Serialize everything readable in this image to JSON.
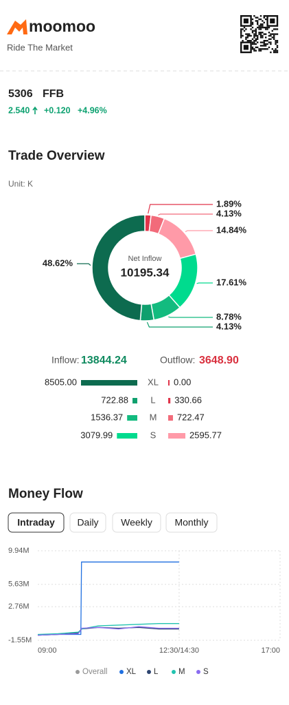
{
  "header": {
    "logo": "moomoo",
    "tagline": "Ride The Market"
  },
  "stock": {
    "code": "5306",
    "name": "FFB",
    "price": "2.540",
    "change": "+0.120",
    "change_pct": "+4.96%"
  },
  "trade_overview": {
    "title": "Trade Overview",
    "unit": "Unit: K"
  },
  "money_flow": {
    "title": "Money Flow",
    "tabs": [
      "Intraday",
      "Daily",
      "Weekly",
      "Monthly"
    ],
    "selected_tab": 0
  },
  "chart_data": [
    {
      "type": "pie",
      "donut": true,
      "center_label": "Net Inflow",
      "center_value": "10195.34",
      "values": [
        1.89,
        4.13,
        14.84,
        17.61,
        8.78,
        4.13,
        48.62
      ],
      "value_labels": [
        "1.89%",
        "4.13%",
        "14.84%",
        "17.61%",
        "8.78%",
        "4.13%",
        "48.62%"
      ],
      "colors": [
        "#e0344a",
        "#f26b7a",
        "#ff9aa8",
        "#00db8e",
        "#13bb7f",
        "#0fa06e",
        "#0d6b4f"
      ]
    },
    {
      "type": "bar",
      "categories": [
        "XL",
        "L",
        "M",
        "S"
      ],
      "series": [
        {
          "name": "Inflow:",
          "total": "13844.24",
          "color": "#0f8a5f",
          "colors": [
            "#0d6b4f",
            "#0fa06e",
            "#13bb7f",
            "#00db8e"
          ],
          "values": [
            8505.0,
            722.88,
            1536.37,
            3079.99
          ],
          "value_labels": [
            "8505.00",
            "722.88",
            "1536.37",
            "3079.99"
          ]
        },
        {
          "name": "Outflow:",
          "total": "3648.90",
          "color": "#d9303e",
          "colors": [
            "#e0344a",
            "#e0344a",
            "#f26b7a",
            "#ff9aa8"
          ],
          "values": [
            0,
            330.66,
            722.47,
            2595.77
          ],
          "value_labels": [
            "0.00",
            "330.66",
            "722.47",
            "2595.77"
          ]
        }
      ]
    },
    {
      "type": "line",
      "x": [
        0,
        30,
        60,
        64,
        65,
        90,
        120,
        150,
        180,
        210
      ],
      "xlim": [
        0,
        360
      ],
      "xticks": [
        {
          "value": 0,
          "label": "09:00"
        },
        {
          "value": 210,
          "label": "12:30/14:30"
        },
        {
          "value": 360,
          "label": "17:00"
        }
      ],
      "ylim": [
        -1550000,
        9940000
      ],
      "yticks": [
        {
          "value": -1550000,
          "label": "-1.55M"
        },
        {
          "value": 2760000,
          "label": "2.76M"
        },
        {
          "value": 5630000,
          "label": "5.63M"
        },
        {
          "value": 9940000,
          "label": "9.94M"
        }
      ],
      "grid": true,
      "series": [
        {
          "name": "Overall",
          "color": "#9a9a9a",
          "values": [
            null,
            null,
            null,
            null,
            null,
            null,
            null,
            null,
            null,
            null
          ]
        },
        {
          "name": "XL",
          "color": "#1f6fe0",
          "values": [
            -900000,
            -800000,
            -800000,
            -800000,
            8500000,
            8500000,
            8500000,
            8500000,
            8500000,
            8500000
          ]
        },
        {
          "name": "L",
          "color": "#2d4470",
          "values": [
            -900000,
            -800000,
            -600000,
            -200000,
            -100000,
            100000,
            0,
            100000,
            -100000,
            -100000
          ]
        },
        {
          "name": "M",
          "color": "#22c3b0",
          "values": [
            -800000,
            -700000,
            -500000,
            -300000,
            -100000,
            300000,
            400000,
            500000,
            600000,
            600000
          ]
        },
        {
          "name": "S",
          "color": "#8a6cf0",
          "values": [
            -900000,
            -800000,
            -700000,
            -300000,
            0,
            100000,
            -100000,
            200000,
            0,
            0
          ]
        }
      ]
    }
  ]
}
